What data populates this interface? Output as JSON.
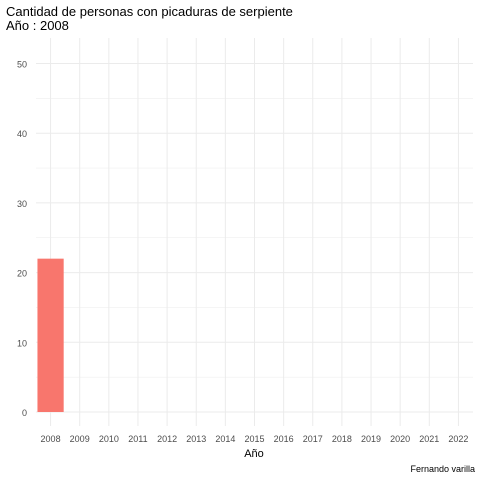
{
  "title": "Cantidad de personas con picaduras de serpiente",
  "subtitle": "Año : 2008",
  "caption": "Fernando varilla",
  "colors": {
    "bar": "#f8766d",
    "grid": "#ebebeb",
    "tick_text": "#4d4d4d"
  },
  "chart_data": {
    "type": "bar",
    "title": "Cantidad de personas con picaduras de serpiente",
    "subtitle": "Año : 2008",
    "xlabel": "Año",
    "ylabel": "",
    "categories": [
      "2008",
      "2009",
      "2010",
      "2011",
      "2012",
      "2013",
      "2014",
      "2015",
      "2016",
      "2017",
      "2018",
      "2019",
      "2020",
      "2021",
      "2022"
    ],
    "values": [
      22,
      null,
      null,
      null,
      null,
      null,
      null,
      null,
      null,
      null,
      null,
      null,
      null,
      null,
      null
    ],
    "ylim": [
      0,
      51
    ],
    "y_ticks": [
      0,
      10,
      20,
      30,
      40,
      50
    ],
    "grid": true,
    "legend": "none"
  }
}
